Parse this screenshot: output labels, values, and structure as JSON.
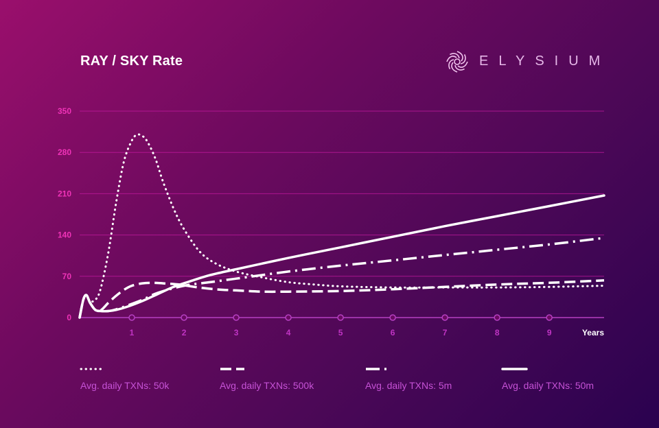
{
  "brand": {
    "name": "ELYSIUM",
    "logo_icon": "elysium-swirl-icon"
  },
  "colors": {
    "axis_ticks": "#f033b8",
    "line": "#ffffff",
    "gridline": "#c41aa0",
    "legend_text": "#c652d6"
  },
  "chart_data": {
    "type": "line",
    "title": "RAY / SKY Rate",
    "xlabel": "Years",
    "ylabel": "",
    "xlim": [
      0,
      10.05
    ],
    "ylim": [
      0,
      350
    ],
    "x_ticks": [
      1,
      2,
      3,
      4,
      5,
      6,
      7,
      8,
      9
    ],
    "y_ticks": [
      0,
      70,
      140,
      210,
      280,
      350
    ],
    "grid": true,
    "legend_position": "bottom",
    "series": [
      {
        "name": "Avg. daily TXNs: 50k",
        "style": "dotted",
        "x": [
          0,
          0.07,
          0.13,
          0.2,
          0.3,
          0.4,
          0.55,
          0.7,
          0.85,
          1.0,
          1.1,
          1.2,
          1.3,
          1.45,
          1.6,
          1.8,
          2.0,
          2.3,
          2.6,
          3.0,
          3.5,
          4.0,
          4.5,
          5.0,
          6.0,
          7.0,
          8.0,
          9.0,
          10.05
        ],
        "values": [
          0,
          30,
          38,
          28,
          30,
          48,
          110,
          195,
          265,
          300,
          310,
          308,
          298,
          270,
          230,
          185,
          150,
          112,
          92,
          78,
          68,
          60,
          56,
          53,
          51,
          51,
          51,
          52,
          54
        ]
      },
      {
        "name": "Avg. daily TXNs: 500k",
        "style": "dashed",
        "x": [
          0,
          0.07,
          0.13,
          0.2,
          0.3,
          0.4,
          0.55,
          0.7,
          0.85,
          1.0,
          1.2,
          1.4,
          1.6,
          1.9,
          2.2,
          2.6,
          3.0,
          3.5,
          4.0,
          5.0,
          6.0,
          7.0,
          8.0,
          9.0,
          10.05
        ],
        "values": [
          0,
          30,
          38,
          25,
          13,
          12,
          25,
          37,
          47,
          54,
          58,
          59,
          58,
          56,
          52,
          48,
          46,
          44,
          44,
          45,
          48,
          52,
          56,
          59,
          63
        ]
      },
      {
        "name": "Avg. daily TXNs: 5m",
        "style": "dash-dot",
        "x": [
          0,
          0.07,
          0.13,
          0.2,
          0.3,
          0.4,
          0.55,
          0.7,
          0.9,
          1.2,
          1.5,
          2.0,
          2.5,
          3.0,
          4.0,
          5.0,
          6.0,
          7.0,
          8.0,
          9.0,
          10.05
        ],
        "values": [
          0,
          30,
          38,
          25,
          13,
          11,
          11,
          14,
          20,
          30,
          42,
          54,
          60,
          66,
          78,
          88,
          97,
          106,
          115,
          124,
          135
        ]
      },
      {
        "name": "Avg. daily TXNs: 50m",
        "style": "solid",
        "x": [
          0,
          0.07,
          0.13,
          0.2,
          0.3,
          0.4,
          0.55,
          0.7,
          0.9,
          1.2,
          1.5,
          1.8,
          2.1,
          2.5,
          3.0,
          4.0,
          5.0,
          6.0,
          7.0,
          8.0,
          9.0,
          10.05
        ],
        "values": [
          0,
          30,
          38,
          25,
          13,
          11,
          11,
          13,
          18,
          28,
          40,
          52,
          61,
          72,
          82,
          101,
          119,
          137,
          155,
          172,
          189,
          207
        ]
      }
    ]
  }
}
